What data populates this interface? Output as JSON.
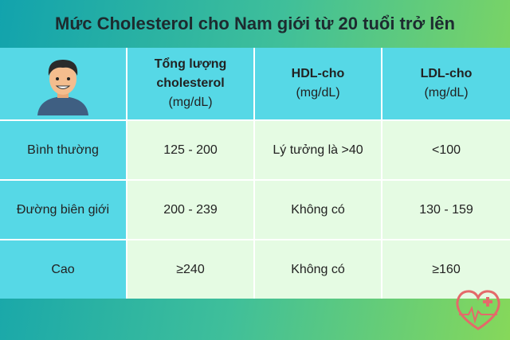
{
  "title": "Mức Cholesterol cho Nam giới từ 20 tuổi trở lên",
  "table": {
    "columns": [
      {
        "name": "Tổng lượng cholesterol",
        "unit": "(mg/dL)"
      },
      {
        "name": "HDL-cho",
        "unit": "(mg/dL)"
      },
      {
        "name": "LDL-cho",
        "unit": "(mg/dL)"
      }
    ],
    "rows": [
      [
        "Bình thường",
        "125 - 200",
        "Lý tưởng là >40",
        "<100"
      ],
      [
        "Đường biên giới",
        "200 - 239",
        "Không có",
        "130 - 159"
      ],
      [
        "Cao",
        "≥240",
        "Không có",
        "≥160"
      ]
    ]
  }
}
